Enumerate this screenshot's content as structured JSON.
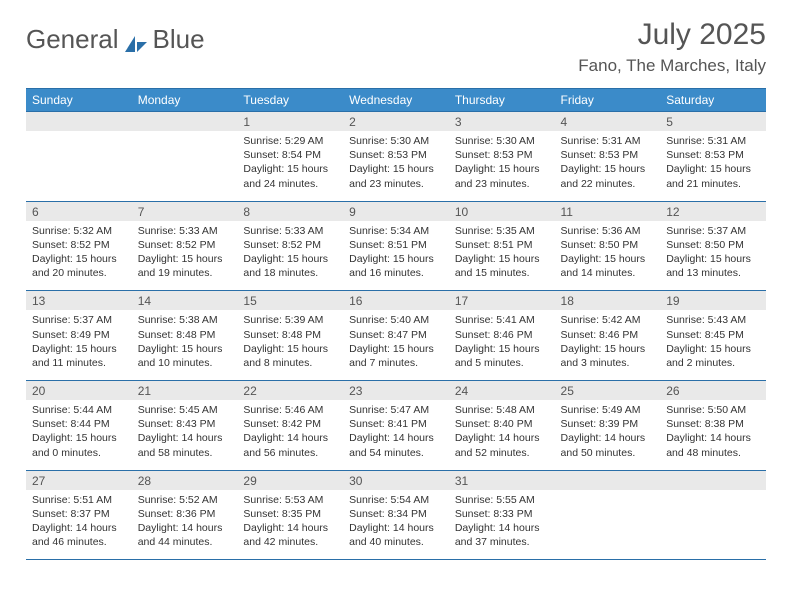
{
  "brand": {
    "word1": "General",
    "word2": "Blue"
  },
  "title": "July 2025",
  "location": "Fano, The Marches, Italy",
  "colors": {
    "header_bg": "#3b8bc9",
    "header_border": "#2a6fa8",
    "daynum_bg": "#e9e9e9",
    "text": "#333333",
    "title_text": "#555555",
    "logo_accent": "#2a6fa8"
  },
  "weekdays": [
    "Sunday",
    "Monday",
    "Tuesday",
    "Wednesday",
    "Thursday",
    "Friday",
    "Saturday"
  ],
  "weeks": [
    [
      null,
      null,
      {
        "n": "1",
        "sunrise": "5:29 AM",
        "sunset": "8:54 PM",
        "daylight": "15 hours and 24 minutes."
      },
      {
        "n": "2",
        "sunrise": "5:30 AM",
        "sunset": "8:53 PM",
        "daylight": "15 hours and 23 minutes."
      },
      {
        "n": "3",
        "sunrise": "5:30 AM",
        "sunset": "8:53 PM",
        "daylight": "15 hours and 23 minutes."
      },
      {
        "n": "4",
        "sunrise": "5:31 AM",
        "sunset": "8:53 PM",
        "daylight": "15 hours and 22 minutes."
      },
      {
        "n": "5",
        "sunrise": "5:31 AM",
        "sunset": "8:53 PM",
        "daylight": "15 hours and 21 minutes."
      }
    ],
    [
      {
        "n": "6",
        "sunrise": "5:32 AM",
        "sunset": "8:52 PM",
        "daylight": "15 hours and 20 minutes."
      },
      {
        "n": "7",
        "sunrise": "5:33 AM",
        "sunset": "8:52 PM",
        "daylight": "15 hours and 19 minutes."
      },
      {
        "n": "8",
        "sunrise": "5:33 AM",
        "sunset": "8:52 PM",
        "daylight": "15 hours and 18 minutes."
      },
      {
        "n": "9",
        "sunrise": "5:34 AM",
        "sunset": "8:51 PM",
        "daylight": "15 hours and 16 minutes."
      },
      {
        "n": "10",
        "sunrise": "5:35 AM",
        "sunset": "8:51 PM",
        "daylight": "15 hours and 15 minutes."
      },
      {
        "n": "11",
        "sunrise": "5:36 AM",
        "sunset": "8:50 PM",
        "daylight": "15 hours and 14 minutes."
      },
      {
        "n": "12",
        "sunrise": "5:37 AM",
        "sunset": "8:50 PM",
        "daylight": "15 hours and 13 minutes."
      }
    ],
    [
      {
        "n": "13",
        "sunrise": "5:37 AM",
        "sunset": "8:49 PM",
        "daylight": "15 hours and 11 minutes."
      },
      {
        "n": "14",
        "sunrise": "5:38 AM",
        "sunset": "8:48 PM",
        "daylight": "15 hours and 10 minutes."
      },
      {
        "n": "15",
        "sunrise": "5:39 AM",
        "sunset": "8:48 PM",
        "daylight": "15 hours and 8 minutes."
      },
      {
        "n": "16",
        "sunrise": "5:40 AM",
        "sunset": "8:47 PM",
        "daylight": "15 hours and 7 minutes."
      },
      {
        "n": "17",
        "sunrise": "5:41 AM",
        "sunset": "8:46 PM",
        "daylight": "15 hours and 5 minutes."
      },
      {
        "n": "18",
        "sunrise": "5:42 AM",
        "sunset": "8:46 PM",
        "daylight": "15 hours and 3 minutes."
      },
      {
        "n": "19",
        "sunrise": "5:43 AM",
        "sunset": "8:45 PM",
        "daylight": "15 hours and 2 minutes."
      }
    ],
    [
      {
        "n": "20",
        "sunrise": "5:44 AM",
        "sunset": "8:44 PM",
        "daylight": "15 hours and 0 minutes."
      },
      {
        "n": "21",
        "sunrise": "5:45 AM",
        "sunset": "8:43 PM",
        "daylight": "14 hours and 58 minutes."
      },
      {
        "n": "22",
        "sunrise": "5:46 AM",
        "sunset": "8:42 PM",
        "daylight": "14 hours and 56 minutes."
      },
      {
        "n": "23",
        "sunrise": "5:47 AM",
        "sunset": "8:41 PM",
        "daylight": "14 hours and 54 minutes."
      },
      {
        "n": "24",
        "sunrise": "5:48 AM",
        "sunset": "8:40 PM",
        "daylight": "14 hours and 52 minutes."
      },
      {
        "n": "25",
        "sunrise": "5:49 AM",
        "sunset": "8:39 PM",
        "daylight": "14 hours and 50 minutes."
      },
      {
        "n": "26",
        "sunrise": "5:50 AM",
        "sunset": "8:38 PM",
        "daylight": "14 hours and 48 minutes."
      }
    ],
    [
      {
        "n": "27",
        "sunrise": "5:51 AM",
        "sunset": "8:37 PM",
        "daylight": "14 hours and 46 minutes."
      },
      {
        "n": "28",
        "sunrise": "5:52 AM",
        "sunset": "8:36 PM",
        "daylight": "14 hours and 44 minutes."
      },
      {
        "n": "29",
        "sunrise": "5:53 AM",
        "sunset": "8:35 PM",
        "daylight": "14 hours and 42 minutes."
      },
      {
        "n": "30",
        "sunrise": "5:54 AM",
        "sunset": "8:34 PM",
        "daylight": "14 hours and 40 minutes."
      },
      {
        "n": "31",
        "sunrise": "5:55 AM",
        "sunset": "8:33 PM",
        "daylight": "14 hours and 37 minutes."
      },
      null,
      null
    ]
  ],
  "labels": {
    "sunrise": "Sunrise: ",
    "sunset": "Sunset: ",
    "daylight": "Daylight: "
  }
}
